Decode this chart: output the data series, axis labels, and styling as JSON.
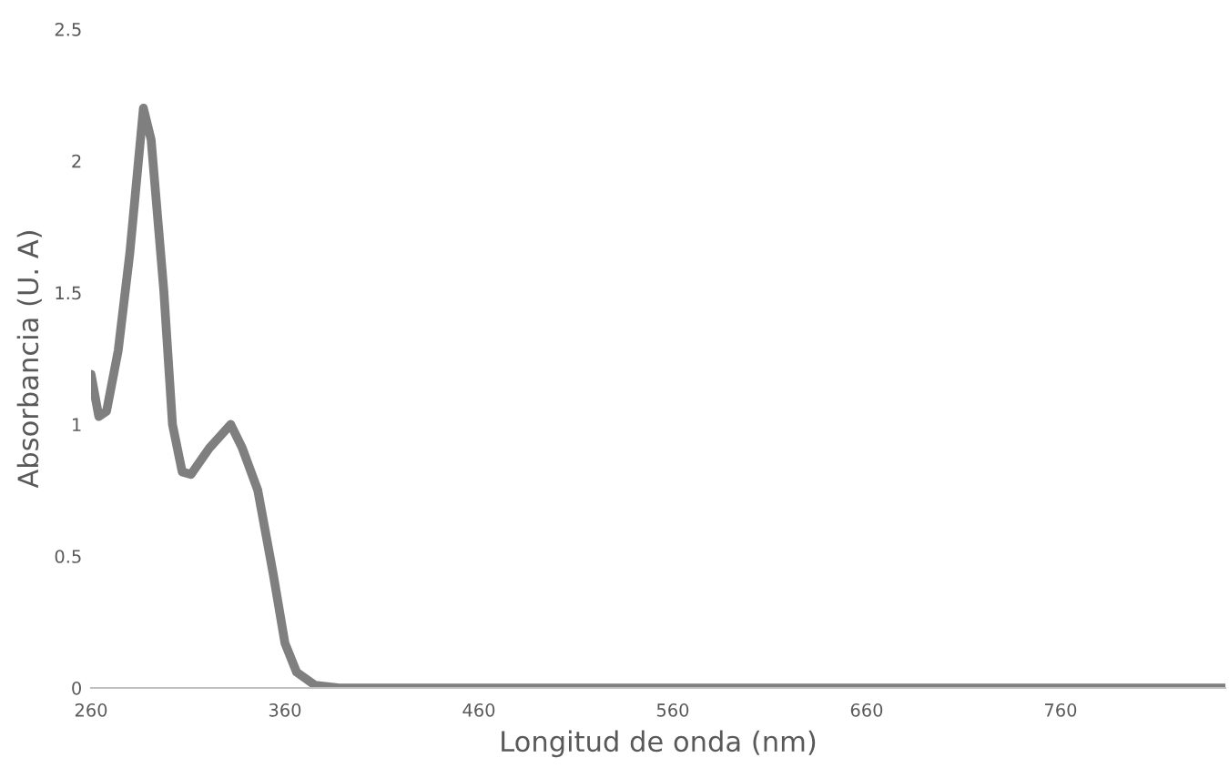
{
  "chart_data": {
    "type": "line",
    "xlabel": "Longitud de onda (nm)",
    "ylabel": "Absorbancia (U. A)",
    "x": [
      260,
      264,
      268,
      274,
      280,
      287,
      291,
      297.5,
      302,
      307,
      311.5,
      321,
      332,
      338,
      346,
      354,
      360,
      366,
      375.6,
      388,
      450,
      550,
      650,
      750,
      845
    ],
    "series": [
      {
        "color": "#7f7f7f",
        "values": [
          1.19,
          1.03,
          1.05,
          1.28,
          1.65,
          2.2,
          2.08,
          1.51,
          1.0,
          0.82,
          0.81,
          0.91,
          1.0,
          0.91,
          0.75,
          0.43,
          0.17,
          0.06,
          0.01,
          0,
          0,
          0,
          0,
          0,
          0
        ]
      }
    ],
    "xlim": [
      260,
      845
    ],
    "xticks": [
      260,
      360,
      460,
      560,
      660,
      760
    ],
    "ylim": [
      0,
      2.5
    ],
    "yticks": [
      0,
      0.5,
      1,
      1.5,
      2,
      2.5
    ],
    "grid": false,
    "legend": false,
    "marker": "none",
    "line_style": "solid"
  }
}
